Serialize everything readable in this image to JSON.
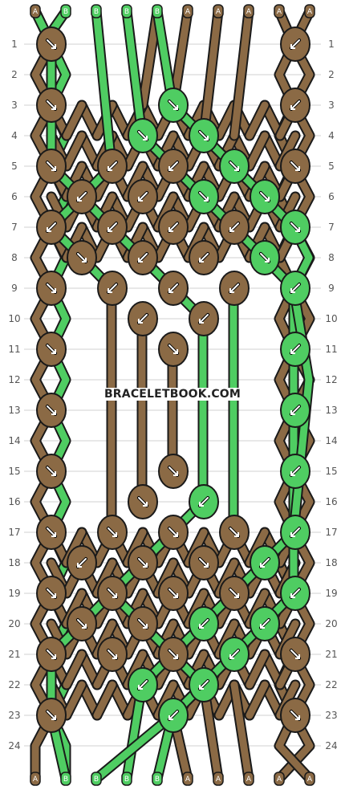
{
  "colors": {
    "A": "#8b6a45",
    "B": "#4fcd62",
    "outline": "#1a1a1a",
    "grid": "#d0d0d0"
  },
  "top_strands": [
    "A",
    "B",
    "B",
    "B",
    "B",
    "A",
    "A",
    "A",
    "A",
    "A"
  ],
  "bottom_strands": [
    "A",
    "B",
    "B",
    "B",
    "B",
    "A",
    "A",
    "A",
    "A",
    "A"
  ],
  "row_numbers": [
    "1",
    "2",
    "3",
    "4",
    "5",
    "6",
    "7",
    "8",
    "9",
    "10",
    "11",
    "12",
    "13",
    "14",
    "15",
    "16",
    "17",
    "18",
    "19",
    "20",
    "21",
    "22",
    "23",
    "24"
  ],
  "watermark": "BRACELETBOOK.COM",
  "knots": [
    {
      "row": 1,
      "pos": 0,
      "color": "A",
      "arrow": "down-right"
    },
    {
      "row": 1,
      "pos": 8,
      "color": "A",
      "arrow": "down-left"
    },
    {
      "row": 3,
      "pos": 0,
      "color": "A",
      "arrow": "down-right"
    },
    {
      "row": 3,
      "pos": 4,
      "color": "B",
      "arrow": "down-right"
    },
    {
      "row": 3,
      "pos": 8,
      "color": "A",
      "arrow": "down-left"
    },
    {
      "row": 4,
      "pos": 3,
      "color": "B",
      "arrow": "down-right"
    },
    {
      "row": 4,
      "pos": 5,
      "color": "B",
      "arrow": "down-right"
    },
    {
      "row": 5,
      "pos": 0,
      "color": "A",
      "arrow": "down-right"
    },
    {
      "row": 5,
      "pos": 2,
      "color": "A",
      "arrow": "down-left"
    },
    {
      "row": 5,
      "pos": 4,
      "color": "A",
      "arrow": "down-left"
    },
    {
      "row": 5,
      "pos": 6,
      "color": "B",
      "arrow": "down-right"
    },
    {
      "row": 5,
      "pos": 8,
      "color": "A",
      "arrow": "down-right"
    },
    {
      "row": 6,
      "pos": 1,
      "color": "A",
      "arrow": "down-left"
    },
    {
      "row": 6,
      "pos": 3,
      "color": "A",
      "arrow": "down-left"
    },
    {
      "row": 6,
      "pos": 5,
      "color": "B",
      "arrow": "down-right"
    },
    {
      "row": 6,
      "pos": 7,
      "color": "B",
      "arrow": "down-right"
    },
    {
      "row": 7,
      "pos": 0,
      "color": "A",
      "arrow": "down-left"
    },
    {
      "row": 7,
      "pos": 2,
      "color": "A",
      "arrow": "down-left"
    },
    {
      "row": 7,
      "pos": 4,
      "color": "A",
      "arrow": "down-left"
    },
    {
      "row": 7,
      "pos": 6,
      "color": "A",
      "arrow": "down-left"
    },
    {
      "row": 7,
      "pos": 8,
      "color": "B",
      "arrow": "down-right"
    },
    {
      "row": 8,
      "pos": 1,
      "color": "A",
      "arrow": "down-right"
    },
    {
      "row": 8,
      "pos": 3,
      "color": "A",
      "arrow": "down-left"
    },
    {
      "row": 8,
      "pos": 5,
      "color": "A",
      "arrow": "down-left"
    },
    {
      "row": 8,
      "pos": 7,
      "color": "B",
      "arrow": "down-right"
    },
    {
      "row": 9,
      "pos": 0,
      "color": "A",
      "arrow": "down-right"
    },
    {
      "row": 9,
      "pos": 2,
      "color": "A",
      "arrow": "down-left"
    },
    {
      "row": 9,
      "pos": 4,
      "color": "A",
      "arrow": "down-left"
    },
    {
      "row": 9,
      "pos": 6,
      "color": "A",
      "arrow": "down-left"
    },
    {
      "row": 9,
      "pos": 8,
      "color": "B",
      "arrow": "down-left"
    },
    {
      "row": 10,
      "pos": 3,
      "color": "A",
      "arrow": "down-left"
    },
    {
      "row": 10,
      "pos": 5,
      "color": "A",
      "arrow": "down-left"
    },
    {
      "row": 11,
      "pos": 0,
      "color": "A",
      "arrow": "down-right"
    },
    {
      "row": 11,
      "pos": 4,
      "color": "A",
      "arrow": "down-right"
    },
    {
      "row": 11,
      "pos": 8,
      "color": "B",
      "arrow": "down-left"
    },
    {
      "row": 13,
      "pos": 0,
      "color": "A",
      "arrow": "down-right"
    },
    {
      "row": 13,
      "pos": 8,
      "color": "B",
      "arrow": "down-left"
    },
    {
      "row": 15,
      "pos": 0,
      "color": "A",
      "arrow": "down-right"
    },
    {
      "row": 15,
      "pos": 4,
      "color": "A",
      "arrow": "down-right"
    },
    {
      "row": 15,
      "pos": 8,
      "color": "B",
      "arrow": "down-left"
    },
    {
      "row": 16,
      "pos": 3,
      "color": "A",
      "arrow": "down-right"
    },
    {
      "row": 16,
      "pos": 5,
      "color": "B",
      "arrow": "down-left"
    },
    {
      "row": 17,
      "pos": 0,
      "color": "A",
      "arrow": "down-right"
    },
    {
      "row": 17,
      "pos": 2,
      "color": "A",
      "arrow": "down-right"
    },
    {
      "row": 17,
      "pos": 4,
      "color": "A",
      "arrow": "down-right"
    },
    {
      "row": 17,
      "pos": 6,
      "color": "A",
      "arrow": "down-right"
    },
    {
      "row": 17,
      "pos": 8,
      "color": "B",
      "arrow": "down-left"
    },
    {
      "row": 18,
      "pos": 1,
      "color": "A",
      "arrow": "down-left"
    },
    {
      "row": 18,
      "pos": 3,
      "color": "A",
      "arrow": "down-right"
    },
    {
      "row": 18,
      "pos": 5,
      "color": "A",
      "arrow": "down-right"
    },
    {
      "row": 18,
      "pos": 7,
      "color": "B",
      "arrow": "down-left"
    },
    {
      "row": 19,
      "pos": 0,
      "color": "A",
      "arrow": "down-right"
    },
    {
      "row": 19,
      "pos": 2,
      "color": "A",
      "arrow": "down-right"
    },
    {
      "row": 19,
      "pos": 4,
      "color": "A",
      "arrow": "down-right"
    },
    {
      "row": 19,
      "pos": 6,
      "color": "A",
      "arrow": "down-right"
    },
    {
      "row": 19,
      "pos": 8,
      "color": "B",
      "arrow": "down-left"
    },
    {
      "row": 20,
      "pos": 1,
      "color": "A",
      "arrow": "down-right"
    },
    {
      "row": 20,
      "pos": 3,
      "color": "A",
      "arrow": "down-right"
    },
    {
      "row": 20,
      "pos": 5,
      "color": "B",
      "arrow": "down-left"
    },
    {
      "row": 20,
      "pos": 7,
      "color": "B",
      "arrow": "down-left"
    },
    {
      "row": 21,
      "pos": 0,
      "color": "A",
      "arrow": "down-right"
    },
    {
      "row": 21,
      "pos": 2,
      "color": "A",
      "arrow": "down-right"
    },
    {
      "row": 21,
      "pos": 4,
      "color": "A",
      "arrow": "down-right"
    },
    {
      "row": 21,
      "pos": 6,
      "color": "B",
      "arrow": "down-left"
    },
    {
      "row": 21,
      "pos": 8,
      "color": "A",
      "arrow": "down-right"
    },
    {
      "row": 22,
      "pos": 3,
      "color": "B",
      "arrow": "down-left"
    },
    {
      "row": 22,
      "pos": 5,
      "color": "B",
      "arrow": "down-left"
    },
    {
      "row": 23,
      "pos": 0,
      "color": "A",
      "arrow": "down-right"
    },
    {
      "row": 23,
      "pos": 4,
      "color": "B",
      "arrow": "down-left"
    },
    {
      "row": 23,
      "pos": 8,
      "color": "A",
      "arrow": "down-right"
    }
  ],
  "strands": [
    {
      "color": "B",
      "path": [
        [
          1,
          0
        ],
        [
          0.5,
          0
        ],
        [
          0,
          0
        ],
        [
          1,
          0
        ],
        [
          2,
          0
        ],
        [
          3,
          0
        ],
        [
          4,
          0
        ],
        [
          5,
          0
        ],
        [
          6,
          0
        ],
        [
          7,
          0
        ],
        [
          8,
          0
        ],
        [
          9,
          0
        ],
        [
          10,
          0
        ],
        [
          11,
          0
        ],
        [
          12,
          0
        ],
        [
          13,
          0
        ],
        [
          14,
          0
        ],
        [
          15,
          0
        ],
        [
          16,
          0
        ],
        [
          17,
          0
        ],
        [
          18,
          1
        ],
        [
          19,
          2
        ],
        [
          20,
          3
        ],
        [
          21,
          4
        ],
        [
          22,
          4
        ],
        [
          23,
          4
        ],
        [
          24,
          4
        ],
        [
          25,
          4
        ]
      ]
    },
    {
      "color": "B",
      "path": [
        [
          2,
          0
        ],
        [
          0.5,
          2
        ],
        [
          5,
          2
        ],
        [
          6,
          3
        ],
        [
          7,
          4
        ],
        [
          8,
          5
        ],
        [
          9,
          6
        ],
        [
          10,
          6
        ],
        [
          11,
          6
        ],
        [
          12,
          6
        ],
        [
          13,
          6
        ],
        [
          14,
          6
        ],
        [
          15,
          6
        ],
        [
          16,
          6
        ],
        [
          17,
          6
        ],
        [
          18,
          7
        ],
        [
          19,
          8
        ],
        [
          20,
          7
        ],
        [
          21,
          6
        ],
        [
          22,
          5
        ],
        [
          23,
          4
        ],
        [
          24,
          3
        ],
        [
          25,
          3
        ]
      ]
    },
    {
      "color": "B",
      "path": [
        [
          3,
          0
        ],
        [
          0.5,
          3
        ],
        [
          3,
          4
        ],
        [
          4,
          5
        ],
        [
          5,
          6
        ],
        [
          6,
          7
        ],
        [
          7,
          8
        ],
        [
          8,
          8
        ],
        [
          9,
          8
        ],
        [
          10,
          8
        ],
        [
          11,
          8
        ],
        [
          12,
          8
        ],
        [
          13,
          8
        ],
        [
          14,
          8
        ],
        [
          15,
          8
        ],
        [
          16,
          8
        ],
        [
          17,
          8
        ],
        [
          18,
          8
        ],
        [
          19,
          8
        ],
        [
          20,
          8
        ],
        [
          21,
          8
        ],
        [
          22,
          8
        ],
        [
          23,
          8
        ],
        [
          24,
          8
        ],
        [
          25,
          8
        ]
      ]
    },
    {
      "color": "B",
      "path": [
        [
          4,
          0
        ],
        [
          0.5,
          4
        ],
        [
          3,
          4
        ],
        [
          4,
          3
        ],
        [
          5,
          2
        ],
        [
          6,
          1
        ],
        [
          7,
          0
        ],
        [
          8,
          0
        ],
        [
          9,
          0
        ],
        [
          10,
          0
        ],
        [
          11,
          0
        ],
        [
          12,
          0
        ],
        [
          13,
          0
        ],
        [
          14,
          0
        ],
        [
          15,
          0
        ],
        [
          16,
          0
        ],
        [
          17,
          0
        ],
        [
          18,
          0
        ],
        [
          19,
          0
        ],
        [
          20,
          0
        ],
        [
          21,
          0
        ],
        [
          22,
          0
        ],
        [
          23,
          0
        ],
        [
          24,
          1
        ],
        [
          25,
          2
        ]
      ]
    }
  ]
}
